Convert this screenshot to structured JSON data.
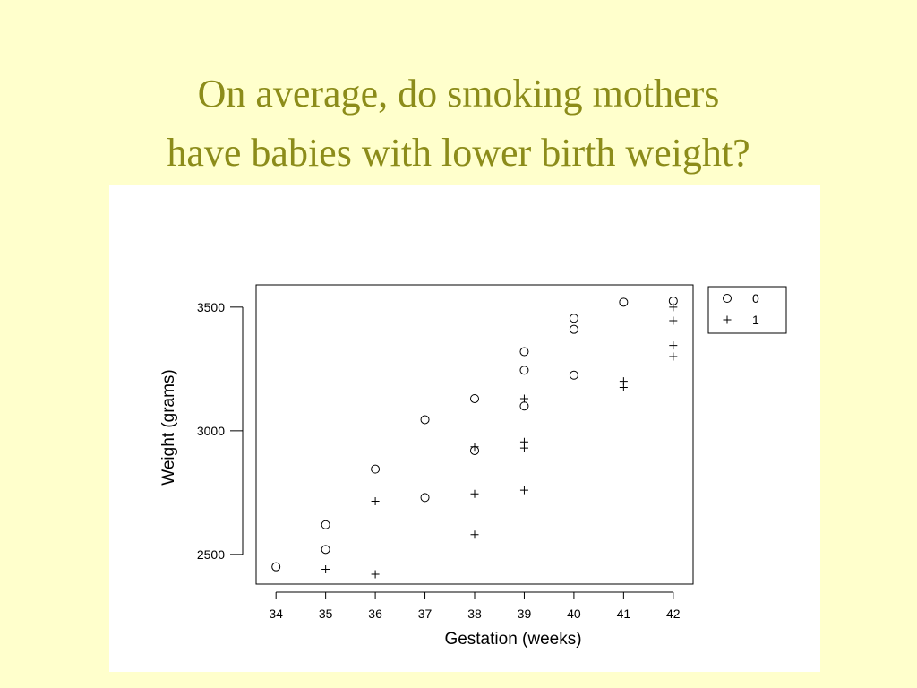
{
  "title": {
    "line1": "On average, do smoking mothers",
    "line2": "have babies with lower birth weight?"
  },
  "colors": {
    "background": "#ffffcc",
    "title": "#8c8c1a",
    "panel": "#ffffff",
    "marks": "#000000"
  },
  "chart_data": {
    "type": "scatter",
    "title": "",
    "xlabel": "Gestation (weeks)",
    "ylabel": "Weight (grams)",
    "xlim": [
      33.6,
      42.4
    ],
    "ylim": [
      2380,
      3590
    ],
    "xticks": [
      34,
      35,
      36,
      37,
      38,
      39,
      40,
      41,
      42
    ],
    "yticks": [
      2500,
      3000,
      3500
    ],
    "grid": false,
    "legend": "top-right outside plot",
    "series": [
      {
        "name": "0",
        "marker": "circle",
        "points": [
          [
            34,
            2450
          ],
          [
            35,
            2520
          ],
          [
            35,
            2620
          ],
          [
            36,
            2845
          ],
          [
            37,
            2730
          ],
          [
            37,
            3045
          ],
          [
            38,
            2920
          ],
          [
            38,
            3130
          ],
          [
            39,
            3100
          ],
          [
            39,
            3245
          ],
          [
            39,
            3320
          ],
          [
            40,
            3225
          ],
          [
            40,
            3410
          ],
          [
            40,
            3455
          ],
          [
            41,
            3520
          ],
          [
            42,
            3525
          ]
        ]
      },
      {
        "name": "1",
        "marker": "plus",
        "points": [
          [
            35,
            2440
          ],
          [
            36,
            2420
          ],
          [
            36,
            2715
          ],
          [
            38,
            2580
          ],
          [
            38,
            2745
          ],
          [
            38,
            2935
          ],
          [
            39,
            2760
          ],
          [
            39,
            2930
          ],
          [
            39,
            2955
          ],
          [
            39,
            3130
          ],
          [
            41,
            3175
          ],
          [
            41,
            3200
          ],
          [
            42,
            3300
          ],
          [
            42,
            3345
          ],
          [
            42,
            3445
          ],
          [
            42,
            3500
          ]
        ]
      }
    ]
  }
}
